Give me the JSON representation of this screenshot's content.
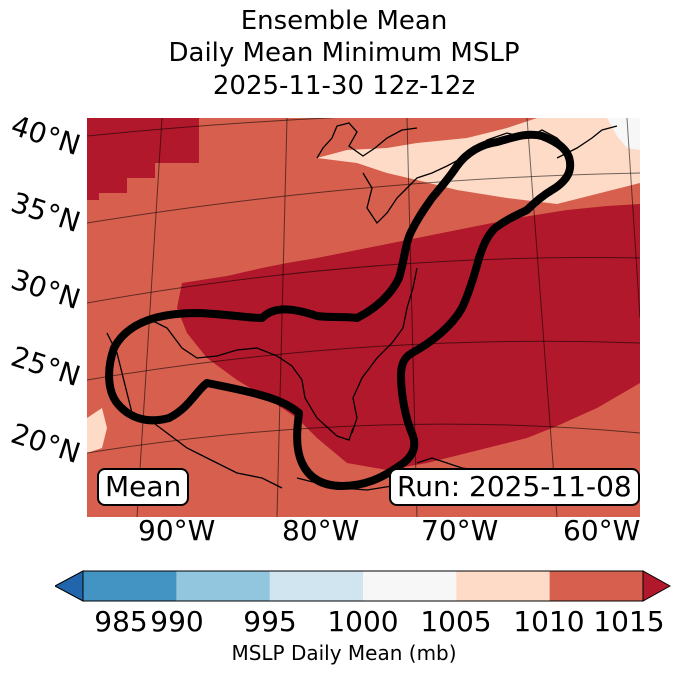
{
  "title": {
    "line1": "Ensemble Mean",
    "line2": "Daily Mean Minimum MSLP",
    "line3": "2025-11-30 12z-12z"
  },
  "map": {
    "lat_labels": [
      "40°N",
      "35°N",
      "30°N",
      "25°N",
      "20°N"
    ],
    "lon_labels": [
      "90°W",
      "80°W",
      "70°W",
      "60°W"
    ],
    "mean_box": "Mean",
    "run_box": "Run: 2025-11-08",
    "field_colors": {
      "1010-1015": "#d6604d",
      "1005-1010": "#fddbc7",
      ">1015": "#b2182b",
      "1000-1005": "#f7f7f7"
    },
    "contour_color": "#000000"
  },
  "colorbar": {
    "ticks": [
      "985",
      "990",
      "995",
      "1000",
      "1005",
      "1010",
      "1015"
    ],
    "colors": [
      "#2166ac",
      "#4393c3",
      "#92c5de",
      "#d1e5f0",
      "#f7f7f7",
      "#fddbc7",
      "#d6604d",
      "#b2182b"
    ],
    "label": "MSLP Daily Mean (mb)"
  }
}
